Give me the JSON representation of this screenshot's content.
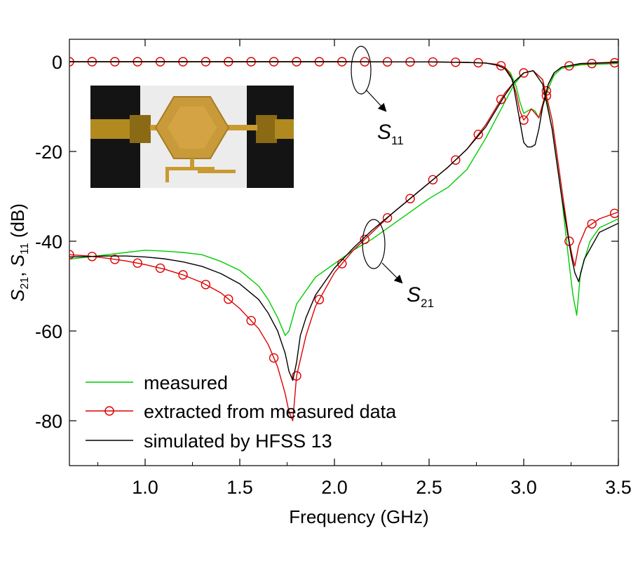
{
  "chart_data": {
    "type": "line",
    "title": "",
    "xlabel": "Frequency (GHz)",
    "ylabel": "S21, S11 (dB)",
    "ylabel_parts": {
      "s21_main": "S",
      "s21_sub": "21",
      "comma": ", ",
      "s11_main": "S",
      "s11_sub": "11",
      "unit": " (dB)"
    },
    "xlim": [
      0.6,
      3.5
    ],
    "ylim": [
      -90,
      5
    ],
    "xticks": [
      1.0,
      1.5,
      2.0,
      2.5,
      3.0,
      3.5
    ],
    "xtick_labels": [
      "1.0",
      "1.5",
      "2.0",
      "2.5",
      "3.0",
      "3.5"
    ],
    "yticks": [
      0,
      -20,
      -40,
      -60,
      -80
    ],
    "ytick_labels": [
      "0",
      "-20",
      "-40",
      "-60",
      "-80"
    ],
    "grid": false,
    "legend_location": "bottom-left",
    "series": [
      {
        "name": "measured",
        "color": "#00cc00",
        "marker": "none",
        "s11": {
          "x": [
            0.6,
            1.0,
            1.5,
            2.0,
            2.5,
            2.7,
            2.8,
            2.86,
            2.9,
            2.93,
            2.96,
            2.98,
            3.0,
            3.02,
            3.04,
            3.06,
            3.08,
            3.1,
            3.13,
            3.16,
            3.2,
            3.3,
            3.5
          ],
          "y": [
            0.0,
            0.0,
            0.0,
            0.0,
            -0.05,
            -0.15,
            -0.3,
            -0.6,
            -1.2,
            -2.5,
            -5.5,
            -9.0,
            -11.5,
            -11.0,
            -10.5,
            -11.0,
            -12.5,
            -10.0,
            -6.0,
            -3.0,
            -1.5,
            -0.7,
            -0.4
          ]
        },
        "s21": {
          "x": [
            0.6,
            0.7,
            0.8,
            0.9,
            1.0,
            1.1,
            1.2,
            1.3,
            1.4,
            1.5,
            1.6,
            1.65,
            1.7,
            1.74,
            1.76,
            1.78,
            1.8,
            1.85,
            1.9,
            2.0,
            2.1,
            2.2,
            2.3,
            2.4,
            2.5,
            2.6,
            2.7,
            2.8,
            2.85,
            2.9,
            2.95,
            3.0,
            3.05,
            3.1,
            3.15,
            3.2,
            3.24,
            3.26,
            3.28,
            3.3,
            3.35,
            3.4,
            3.5
          ],
          "y": [
            -44.0,
            -43.5,
            -43.0,
            -42.5,
            -42.0,
            -42.2,
            -42.5,
            -43.0,
            -44.5,
            -46.5,
            -50.0,
            -53.0,
            -57.0,
            -61.0,
            -60.0,
            -57.0,
            -54.0,
            -51.0,
            -48.0,
            -45.0,
            -42.0,
            -39.5,
            -36.5,
            -33.5,
            -30.5,
            -28.0,
            -24.0,
            -17.0,
            -13.0,
            -9.0,
            -5.0,
            -2.5,
            -2.0,
            -4.0,
            -15.0,
            -30.0,
            -45.0,
            -52.0,
            -56.5,
            -47.0,
            -40.0,
            -37.0,
            -35.0
          ]
        }
      },
      {
        "name": "extracted from measured data",
        "color": "#dd0000",
        "marker": "circle",
        "s11": {
          "x": [
            0.6,
            1.0,
            1.5,
            2.0,
            2.5,
            2.7,
            2.8,
            2.86,
            2.9,
            2.93,
            2.96,
            2.98,
            3.0,
            3.02,
            3.04,
            3.06,
            3.08,
            3.1,
            3.13,
            3.16,
            3.2,
            3.3,
            3.5
          ],
          "y": [
            0.0,
            0.0,
            0.0,
            0.0,
            -0.05,
            -0.15,
            -0.3,
            -0.6,
            -1.2,
            -3.0,
            -7.0,
            -11.0,
            -13.0,
            -12.0,
            -10.5,
            -11.5,
            -12.5,
            -9.5,
            -5.0,
            -2.5,
            -1.2,
            -0.5,
            -0.2
          ]
        },
        "s21": {
          "x": [
            0.6,
            0.7,
            0.8,
            0.9,
            1.0,
            1.1,
            1.2,
            1.3,
            1.4,
            1.5,
            1.6,
            1.65,
            1.7,
            1.74,
            1.76,
            1.78,
            1.8,
            1.85,
            1.9,
            2.0,
            2.1,
            2.2,
            2.3,
            2.4,
            2.5,
            2.6,
            2.7,
            2.8,
            2.85,
            2.9,
            2.95,
            3.0,
            3.05,
            3.1,
            3.15,
            3.2,
            3.24,
            3.26,
            3.27,
            3.29,
            3.33,
            3.4,
            3.5
          ],
          "y": [
            -43.0,
            -43.3,
            -43.8,
            -44.4,
            -45.2,
            -46.2,
            -47.5,
            -49.2,
            -51.5,
            -55.0,
            -59.5,
            -63.0,
            -68.0,
            -74.0,
            -78.0,
            -80.0,
            -70.0,
            -61.0,
            -54.5,
            -47.0,
            -42.0,
            -38.0,
            -34.0,
            -30.5,
            -27.0,
            -23.5,
            -19.5,
            -14.0,
            -10.5,
            -7.0,
            -4.5,
            -2.5,
            -2.0,
            -4.0,
            -13.0,
            -28.0,
            -40.0,
            -44.0,
            -45.5,
            -41.0,
            -37.0,
            -35.0,
            -33.5
          ]
        },
        "s11_markers_x": [
          0.6,
          0.72,
          0.84,
          0.96,
          1.08,
          1.2,
          1.32,
          1.44,
          1.56,
          1.68,
          1.8,
          1.92,
          2.04,
          2.16,
          2.28,
          2.4,
          2.52,
          2.64,
          2.76,
          2.88,
          3.0,
          3.12,
          3.24,
          3.36,
          3.48
        ],
        "s21_markers_x": [
          0.6,
          0.72,
          0.84,
          0.96,
          1.08,
          1.2,
          1.32,
          1.44,
          1.56,
          1.68,
          1.8,
          1.92,
          2.04,
          2.16,
          2.28,
          2.4,
          2.52,
          2.64,
          2.76,
          2.88,
          3.0,
          3.12,
          3.24,
          3.36,
          3.48
        ]
      },
      {
        "name": "simulated by HFSS 13",
        "color": "#000000",
        "marker": "none",
        "s11": {
          "x": [
            0.6,
            1.0,
            1.5,
            2.0,
            2.5,
            2.7,
            2.8,
            2.86,
            2.9,
            2.94,
            2.97,
            3.0,
            3.02,
            3.04,
            3.06,
            3.08,
            3.1,
            3.13,
            3.16,
            3.2,
            3.3,
            3.5
          ],
          "y": [
            0.0,
            0.0,
            0.0,
            0.0,
            -0.05,
            -0.15,
            -0.3,
            -0.8,
            -1.5,
            -4.0,
            -11.0,
            -18.0,
            -19.0,
            -19.0,
            -18.5,
            -15.0,
            -10.0,
            -5.0,
            -2.5,
            -1.2,
            -0.4,
            -0.1
          ]
        },
        "s21": {
          "x": [
            0.6,
            0.7,
            0.8,
            0.9,
            1.0,
            1.1,
            1.2,
            1.3,
            1.4,
            1.5,
            1.6,
            1.65,
            1.7,
            1.74,
            1.76,
            1.78,
            1.8,
            1.82,
            1.85,
            1.9,
            2.0,
            2.1,
            2.2,
            2.3,
            2.4,
            2.5,
            2.6,
            2.7,
            2.8,
            2.85,
            2.9,
            2.95,
            3.0,
            3.05,
            3.1,
            3.15,
            3.2,
            3.25,
            3.27,
            3.29,
            3.32,
            3.4,
            3.5
          ],
          "y": [
            -43.5,
            -43.4,
            -43.3,
            -43.3,
            -43.5,
            -43.9,
            -44.6,
            -45.6,
            -47.2,
            -49.5,
            -53.0,
            -56.0,
            -60.0,
            -65.0,
            -69.0,
            -71.0,
            -67.0,
            -61.0,
            -57.0,
            -52.0,
            -46.0,
            -41.5,
            -37.5,
            -34.0,
            -30.5,
            -27.0,
            -23.5,
            -19.5,
            -14.5,
            -11.0,
            -7.5,
            -4.5,
            -2.5,
            -2.0,
            -5.0,
            -15.0,
            -30.0,
            -43.0,
            -47.0,
            -49.0,
            -44.0,
            -38.0,
            -36.0
          ]
        }
      }
    ],
    "annotations": [
      {
        "label": "S",
        "subscript": "11",
        "target": "S11 curves",
        "ellipse_center": [
          2.15,
          -3
        ],
        "label_pos": [
          2.3,
          -15
        ]
      },
      {
        "label": "S",
        "subscript": "21",
        "target": "S21 curves",
        "ellipse_center": [
          2.2,
          -40.5
        ],
        "label_pos": [
          2.45,
          -52
        ]
      }
    ],
    "inset": {
      "description_name": "filter-photo-inset"
    }
  }
}
